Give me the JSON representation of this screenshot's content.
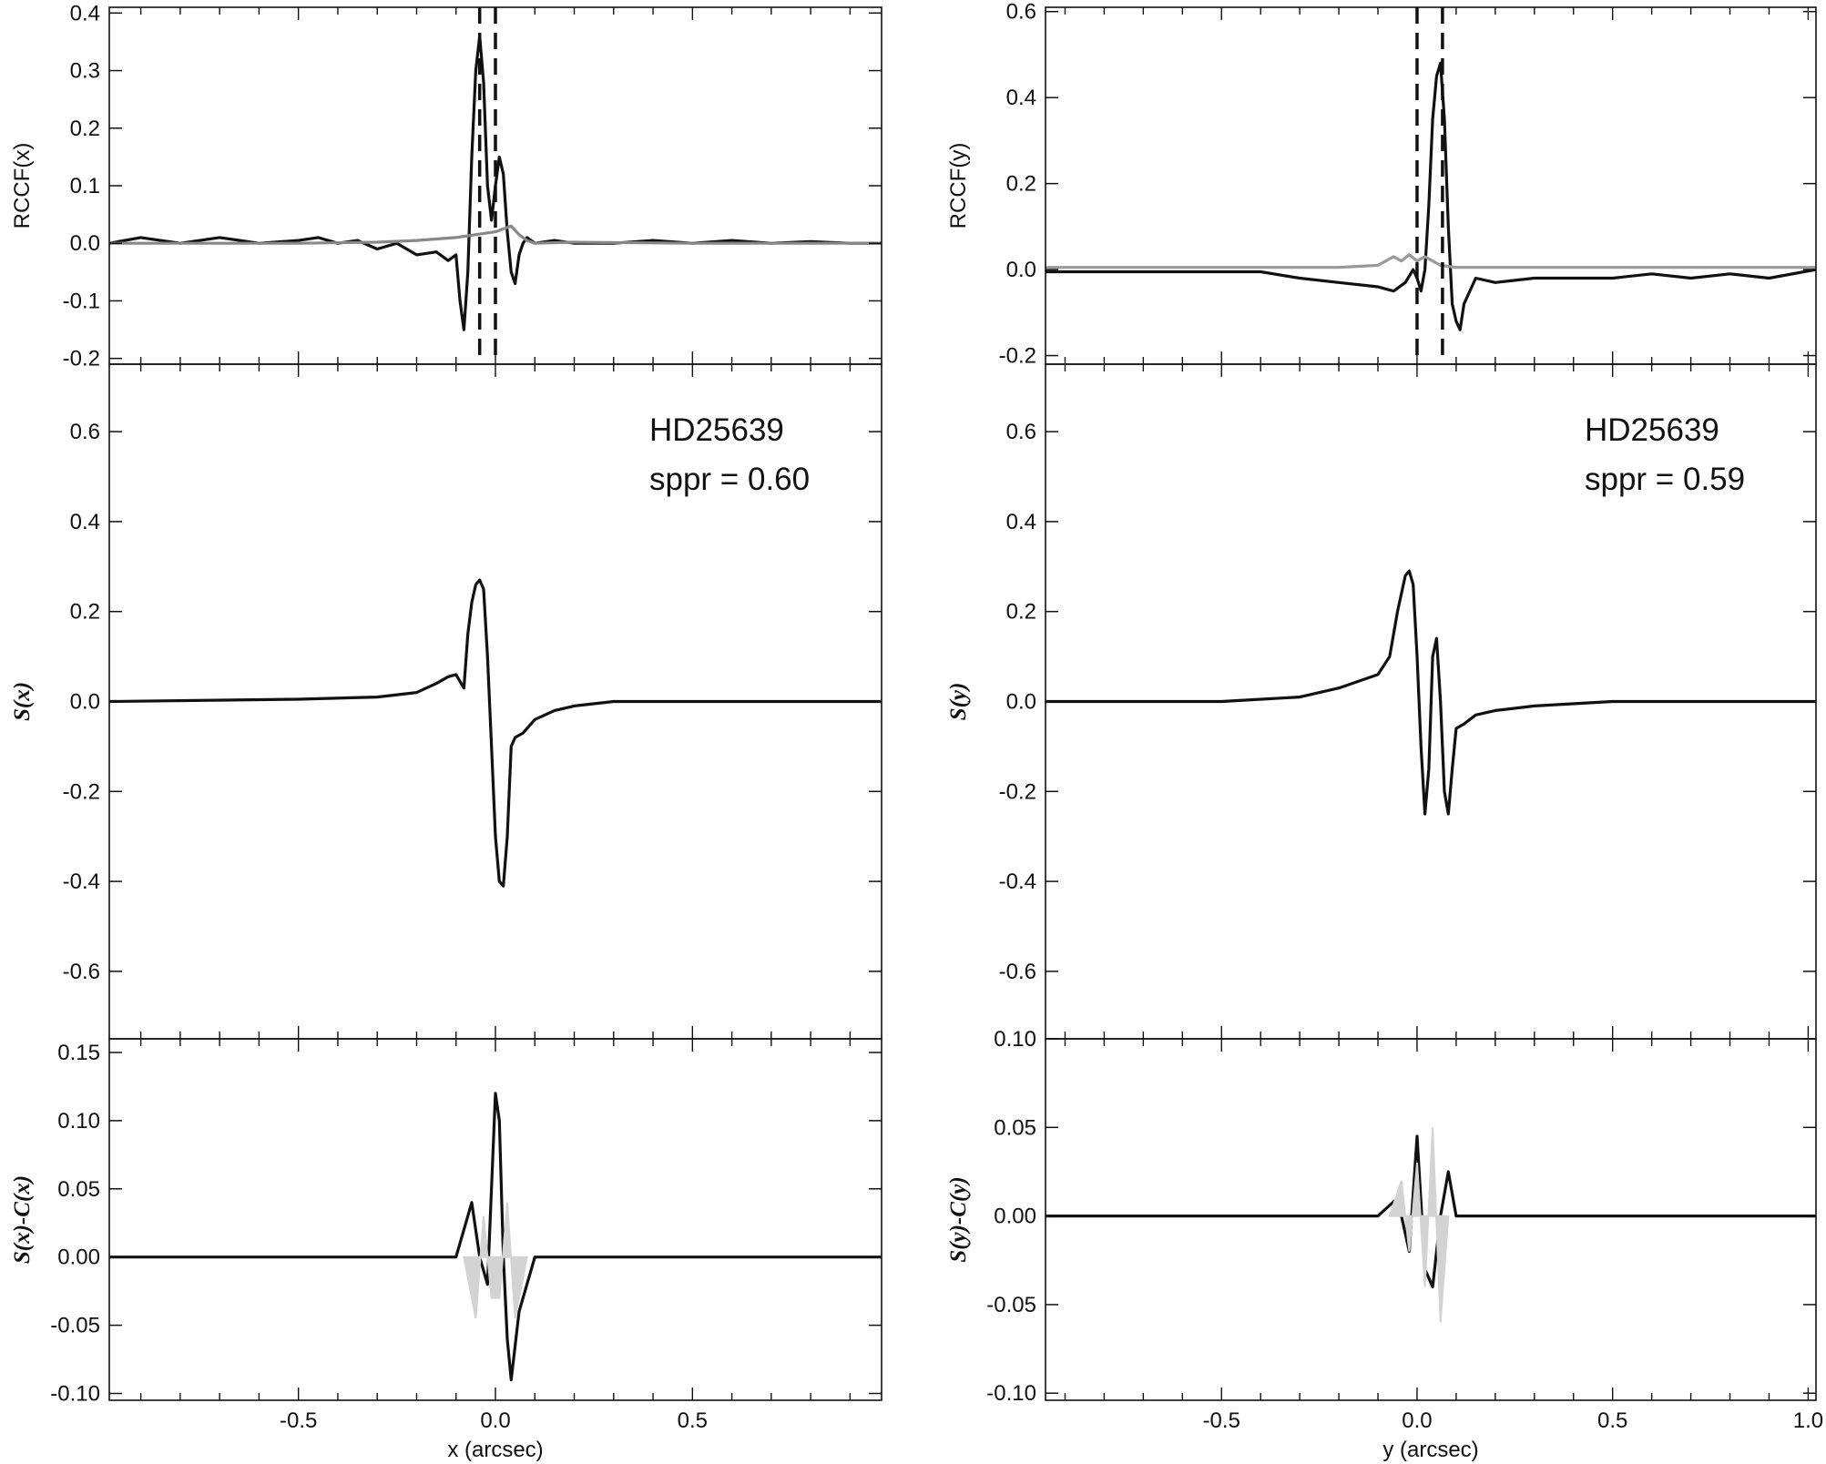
{
  "chart_data": [
    {
      "type": "line",
      "panel": "left-top",
      "ylabel": "RCCF(x)",
      "xlim": [
        -0.98,
        0.98
      ],
      "ylim": [
        -0.21,
        0.41
      ],
      "yticks": [
        -0.2,
        -0.1,
        0.0,
        0.1,
        0.2,
        0.3,
        0.4
      ],
      "ytick_labels": [
        "-0.2",
        "-0.1",
        "0.0",
        "0.1",
        "0.2",
        "0.3",
        "0.4"
      ],
      "vlines": [
        -0.04,
        0.0
      ],
      "series": [
        {
          "color": "#111111",
          "x": [
            -0.98,
            -0.9,
            -0.8,
            -0.7,
            -0.6,
            -0.5,
            -0.45,
            -0.4,
            -0.35,
            -0.3,
            -0.25,
            -0.2,
            -0.15,
            -0.12,
            -0.1,
            -0.09,
            -0.08,
            -0.07,
            -0.06,
            -0.05,
            -0.04,
            -0.03,
            -0.02,
            -0.01,
            0.0,
            0.01,
            0.02,
            0.03,
            0.04,
            0.05,
            0.06,
            0.07,
            0.08,
            0.1,
            0.15,
            0.2,
            0.3,
            0.4,
            0.5,
            0.6,
            0.7,
            0.8,
            0.9,
            0.98
          ],
          "y": [
            0.0,
            0.01,
            0.0,
            0.01,
            0.0,
            0.005,
            0.01,
            0.0,
            0.005,
            -0.01,
            0.0,
            -0.02,
            -0.015,
            -0.03,
            -0.02,
            -0.1,
            -0.15,
            -0.05,
            0.15,
            0.3,
            0.36,
            0.28,
            0.1,
            0.04,
            0.1,
            0.15,
            0.12,
            0.02,
            -0.05,
            -0.07,
            -0.02,
            0.0,
            0.01,
            0.0,
            0.005,
            0.0,
            0.0,
            0.005,
            0.0,
            0.005,
            0.0,
            0.003,
            0.0,
            0.0
          ]
        },
        {
          "color": "#888888",
          "x": [
            -0.98,
            -0.5,
            -0.3,
            -0.2,
            -0.1,
            -0.05,
            0.0,
            0.02,
            0.04,
            0.06,
            0.08,
            0.1,
            0.2,
            0.5,
            0.98
          ],
          "y": [
            0.0,
            0.0,
            0.002,
            0.005,
            0.01,
            0.015,
            0.02,
            0.025,
            0.03,
            0.015,
            0.005,
            0.0,
            0.002,
            0.0,
            0.0
          ]
        }
      ]
    },
    {
      "type": "line",
      "panel": "left-middle",
      "ylabel": "S(x)",
      "xlim": [
        -0.98,
        0.98
      ],
      "ylim": [
        -0.75,
        0.75
      ],
      "yticks": [
        -0.6,
        -0.4,
        -0.2,
        0.0,
        0.2,
        0.4,
        0.6
      ],
      "ytick_labels": [
        "-0.6",
        "-0.4",
        "-0.2",
        "0.0",
        "0.2",
        "0.4",
        "0.6"
      ],
      "annotations": [
        "HD25639",
        "sppr = 0.60"
      ],
      "series": [
        {
          "color": "#111111",
          "x": [
            -0.98,
            -0.5,
            -0.3,
            -0.2,
            -0.15,
            -0.12,
            -0.1,
            -0.08,
            -0.07,
            -0.06,
            -0.05,
            -0.04,
            -0.03,
            -0.02,
            -0.01,
            0.0,
            0.01,
            0.02,
            0.03,
            0.04,
            0.05,
            0.07,
            0.1,
            0.15,
            0.2,
            0.3,
            0.5,
            0.98
          ],
          "y": [
            0.0,
            0.005,
            0.01,
            0.02,
            0.04,
            0.055,
            0.06,
            0.03,
            0.15,
            0.22,
            0.26,
            0.27,
            0.25,
            0.1,
            -0.1,
            -0.3,
            -0.4,
            -0.41,
            -0.3,
            -0.1,
            -0.08,
            -0.07,
            -0.04,
            -0.02,
            -0.01,
            0.0,
            0.0,
            0.0
          ]
        }
      ]
    },
    {
      "type": "line",
      "panel": "left-bottom",
      "ylabel": "S(x)-C(x)",
      "xlabel": "x (arcsec)",
      "xlim": [
        -0.98,
        0.98
      ],
      "ylim": [
        -0.105,
        0.16
      ],
      "yticks": [
        -0.1,
        -0.05,
        0.0,
        0.05,
        0.1,
        0.15
      ],
      "ytick_labels": [
        "-0.10",
        "-0.05",
        "0.00",
        "0.05",
        "0.10",
        "0.15"
      ],
      "xticks": [
        -0.5,
        0.0,
        0.5
      ],
      "xtick_labels": [
        "-0.5",
        "0.0",
        "0.5"
      ],
      "series": [
        {
          "color": "#111111",
          "x": [
            -0.98,
            -0.5,
            -0.1,
            -0.06,
            -0.04,
            -0.02,
            0.0,
            0.01,
            0.02,
            0.03,
            0.04,
            0.06,
            0.08,
            0.1,
            0.5,
            0.98
          ],
          "y": [
            0.0,
            0.0,
            0.0,
            0.04,
            0.0,
            -0.02,
            0.12,
            0.1,
            0.0,
            -0.06,
            -0.09,
            -0.04,
            -0.02,
            0.0,
            0.0,
            0.0
          ]
        },
        {
          "color": "#d3d3d3",
          "x": [
            -0.08,
            -0.05,
            -0.03,
            -0.01,
            0.01,
            0.03,
            0.05,
            0.08
          ],
          "y": [
            0.0,
            -0.045,
            0.03,
            -0.03,
            -0.03,
            0.04,
            -0.045,
            0.0
          ]
        }
      ]
    },
    {
      "type": "line",
      "panel": "right-top",
      "ylabel": "RCCF(y)",
      "xlim": [
        -0.95,
        1.02
      ],
      "ylim": [
        -0.22,
        0.61
      ],
      "yticks": [
        -0.2,
        0.0,
        0.2,
        0.4,
        0.6
      ],
      "ytick_labels": [
        "-0.2",
        "0.0",
        "0.2",
        "0.4",
        "0.6"
      ],
      "vlines": [
        0.0,
        0.065
      ],
      "series": [
        {
          "color": "#111111",
          "x": [
            -0.95,
            -0.8,
            -0.6,
            -0.4,
            -0.3,
            -0.2,
            -0.1,
            -0.06,
            -0.03,
            -0.01,
            0.0,
            0.01,
            0.02,
            0.03,
            0.04,
            0.05,
            0.06,
            0.07,
            0.08,
            0.09,
            0.1,
            0.11,
            0.12,
            0.15,
            0.2,
            0.3,
            0.4,
            0.5,
            0.6,
            0.7,
            0.8,
            0.9,
            1.02
          ],
          "y": [
            -0.005,
            -0.005,
            -0.005,
            -0.005,
            -0.02,
            -0.03,
            -0.04,
            -0.05,
            -0.03,
            0.0,
            -0.02,
            -0.05,
            0.0,
            0.15,
            0.35,
            0.45,
            0.48,
            0.35,
            0.1,
            -0.08,
            -0.12,
            -0.14,
            -0.08,
            -0.02,
            -0.03,
            -0.02,
            -0.02,
            -0.02,
            -0.01,
            -0.02,
            -0.01,
            -0.02,
            0.0
          ]
        },
        {
          "color": "#999999",
          "x": [
            -0.95,
            -0.5,
            -0.2,
            -0.1,
            -0.06,
            -0.04,
            -0.02,
            0.0,
            0.02,
            0.04,
            0.06,
            0.1,
            0.2,
            0.5,
            1.02
          ],
          "y": [
            0.005,
            0.005,
            0.005,
            0.01,
            0.03,
            0.02,
            0.035,
            0.02,
            0.03,
            0.02,
            0.01,
            0.005,
            0.005,
            0.005,
            0.005
          ]
        }
      ]
    },
    {
      "type": "line",
      "panel": "right-middle",
      "ylabel": "S(y)",
      "xlim": [
        -0.95,
        1.02
      ],
      "ylim": [
        -0.75,
        0.75
      ],
      "yticks": [
        -0.6,
        -0.4,
        -0.2,
        0.0,
        0.2,
        0.4,
        0.6
      ],
      "ytick_labels": [
        "-0.6",
        "-0.4",
        "-0.2",
        "0.0",
        "0.2",
        "0.4",
        "0.6"
      ],
      "annotations": [
        "HD25639",
        "sppr = 0.59"
      ],
      "series": [
        {
          "color": "#111111",
          "x": [
            -0.95,
            -0.5,
            -0.3,
            -0.2,
            -0.1,
            -0.07,
            -0.05,
            -0.03,
            -0.02,
            -0.01,
            0.0,
            0.01,
            0.02,
            0.03,
            0.04,
            0.05,
            0.06,
            0.07,
            0.08,
            0.09,
            0.1,
            0.12,
            0.15,
            0.2,
            0.3,
            0.5,
            1.02
          ],
          "y": [
            0.0,
            0.0,
            0.01,
            0.03,
            0.06,
            0.1,
            0.2,
            0.28,
            0.29,
            0.26,
            0.1,
            -0.1,
            -0.25,
            -0.15,
            0.1,
            0.14,
            0.0,
            -0.2,
            -0.25,
            -0.15,
            -0.06,
            -0.05,
            -0.03,
            -0.02,
            -0.01,
            0.0,
            0.0
          ]
        }
      ]
    },
    {
      "type": "line",
      "panel": "right-bottom",
      "ylabel": "S(y)-C(y)",
      "xlabel": "y (arcsec)",
      "xlim": [
        -0.95,
        1.02
      ],
      "ylim": [
        -0.104,
        0.1
      ],
      "yticks": [
        -0.1,
        -0.05,
        0.0,
        0.05,
        0.1
      ],
      "ytick_labels": [
        "-0.10",
        "-0.05",
        "0.00",
        "0.05",
        "0.10"
      ],
      "xticks": [
        -0.5,
        0.0,
        0.5,
        1.0
      ],
      "xtick_labels": [
        "-0.5",
        "0.0",
        "0.5",
        "1.0"
      ],
      "series": [
        {
          "color": "#111111",
          "x": [
            -0.95,
            -0.5,
            -0.1,
            -0.05,
            -0.02,
            0.0,
            0.02,
            0.04,
            0.06,
            0.08,
            0.1,
            0.5,
            1.02
          ],
          "y": [
            0.0,
            0.0,
            0.0,
            0.01,
            -0.02,
            0.045,
            -0.03,
            -0.04,
            0.0,
            0.025,
            0.0,
            0.0,
            0.0
          ]
        },
        {
          "color": "#d3d3d3",
          "x": [
            -0.07,
            -0.04,
            -0.02,
            0.0,
            0.02,
            0.04,
            0.06,
            0.08
          ],
          "y": [
            0.0,
            0.02,
            -0.02,
            0.03,
            -0.04,
            0.05,
            -0.06,
            0.0
          ]
        }
      ]
    }
  ]
}
